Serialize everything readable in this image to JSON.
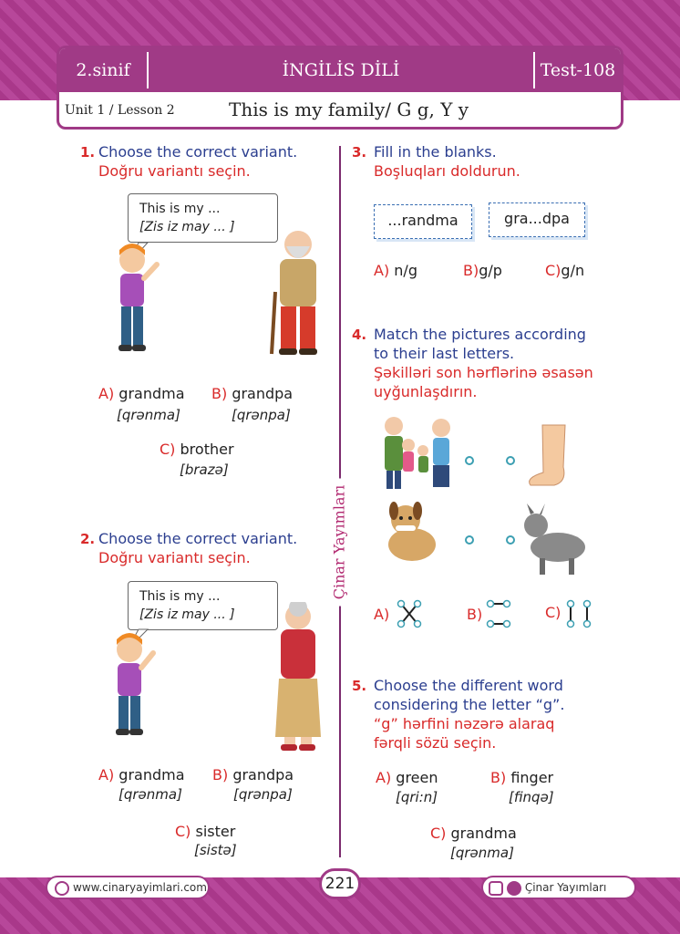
{
  "header": {
    "grade": "2.sinif",
    "subject": "İNGİLİS DİLİ",
    "test": "Test-108",
    "unit": "Unit 1 / Lesson 2",
    "title": "This is my family/ G g, Y y"
  },
  "side_label": "Çinar Yayımları",
  "q1": {
    "number": "1.",
    "text_en": "Choose the correct variant.",
    "text_az": "Doğru variantı seçin.",
    "bubble_line1": "This is my ...",
    "bubble_line2": "[Zis iz may ... ]",
    "options": [
      {
        "letter": "A)",
        "word": "grandma",
        "ipa": "[qrənma]"
      },
      {
        "letter": "B)",
        "word": "grandpa",
        "ipa": "[qrənpa]"
      },
      {
        "letter": "C)",
        "word": "brother",
        "ipa": "[brazə]"
      }
    ]
  },
  "q2": {
    "number": "2.",
    "text_en": "Choose the correct variant.",
    "text_az": "Doğru variantı seçin.",
    "bubble_line1": "This is my ...",
    "bubble_line2": "[Zis iz may ... ]",
    "options": [
      {
        "letter": "A)",
        "word": "grandma",
        "ipa": "[qrənma]"
      },
      {
        "letter": "B)",
        "word": "grandpa",
        "ipa": "[qrənpa]"
      },
      {
        "letter": "C)",
        "word": "sister",
        "ipa": "[sistə]"
      }
    ]
  },
  "q3": {
    "number": "3.",
    "text_en": "Fill in the blanks.",
    "text_az": "Boşluqları doldurun.",
    "cards": [
      "...randma",
      "gra...dpa"
    ],
    "options": [
      {
        "letter": "A)",
        "word": "n/g"
      },
      {
        "letter": "B)",
        "word": "g/p"
      },
      {
        "letter": "C)",
        "word": "g/n"
      }
    ]
  },
  "q4": {
    "number": "4.",
    "text_en_1": "Match the pictures according",
    "text_en_2": "to their last letters.",
    "text_az_1": "Şəkilləri son hərflərinə əsasən",
    "text_az_2": "uyğunlaşdırın.",
    "options": [
      "A)",
      "B)",
      "C)"
    ]
  },
  "q5": {
    "number": "5.",
    "text_en_1": "Choose the different word",
    "text_en_2": "considering the letter “g”.",
    "text_az_1": "“g” hərfini nəzərə alaraq",
    "text_az_2": "fərqli sözü seçin.",
    "options": [
      {
        "letter": "A)",
        "word": "green",
        "ipa": "[qri:n]"
      },
      {
        "letter": "B)",
        "word": "finger",
        "ipa": "[finqə]"
      },
      {
        "letter": "C)",
        "word": "grandma",
        "ipa": "[qrənma]"
      }
    ]
  },
  "footer": {
    "website": "www.cinaryayimlari.com",
    "page": "221",
    "brand": "Çinar Yayımları"
  }
}
